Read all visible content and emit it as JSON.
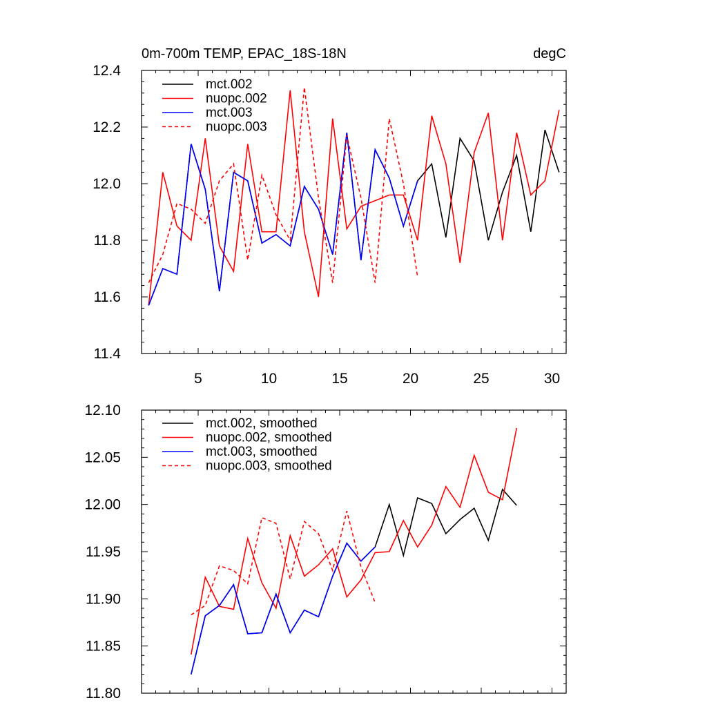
{
  "chart_data": [
    {
      "type": "line",
      "title_left": "0m-700m TEMP, EPAC_18S-18N",
      "title_right": "degC",
      "xlabel": "",
      "ylabel": "",
      "xlim": [
        1,
        31
      ],
      "ylim": [
        11.4,
        12.4
      ],
      "xticks": [
        5,
        10,
        15,
        20,
        25,
        30
      ],
      "xtick_labels": [
        "5",
        "10",
        "15",
        "20",
        "25",
        "30"
      ],
      "yticks": [
        11.4,
        11.6,
        11.8,
        12.0,
        12.2,
        12.4
      ],
      "ytick_labels": [
        "11.4",
        "11.6",
        "11.8",
        "12.0",
        "12.2",
        "12.4"
      ],
      "legend_position": "top-left",
      "series": [
        {
          "name": "mct.002",
          "color": "#000000",
          "dash": "solid",
          "x": [
            1.5,
            2.5,
            3.5,
            4.5,
            5.5,
            6.5,
            7.5,
            8.5,
            9.5,
            10.5,
            11.5,
            12.5,
            13.5,
            14.5,
            15.5,
            16.5,
            17.5,
            18.5,
            19.5,
            20.5,
            21.5,
            22.5,
            23.5,
            24.5,
            25.5,
            26.5,
            27.5,
            28.5,
            29.5,
            30.5
          ],
          "values": [
            11.57,
            11.7,
            11.68,
            12.14,
            11.98,
            11.62,
            12.04,
            12.01,
            11.79,
            11.82,
            11.78,
            11.99,
            11.91,
            11.75,
            12.18,
            11.73,
            12.12,
            12.02,
            11.85,
            12.01,
            12.07,
            11.81,
            12.16,
            12.08,
            11.8,
            11.97,
            12.1,
            11.83,
            12.19,
            12.04
          ]
        },
        {
          "name": "nuopc.002",
          "color": "#ff0000",
          "dash": "solid",
          "x": [
            1.5,
            2.5,
            3.5,
            4.5,
            5.5,
            6.5,
            7.5,
            8.5,
            9.5,
            10.5,
            11.5,
            12.5,
            13.5,
            14.5,
            15.5,
            16.5,
            17.5,
            18.5,
            19.5,
            20.5,
            21.5,
            22.5,
            23.5,
            24.5,
            25.5,
            26.5,
            27.5,
            28.5,
            29.5,
            30.5
          ],
          "values": [
            11.57,
            12.04,
            11.85,
            11.8,
            12.16,
            11.78,
            11.69,
            12.14,
            11.83,
            11.83,
            12.33,
            11.83,
            11.6,
            12.23,
            11.84,
            11.92,
            11.94,
            11.96,
            11.96,
            11.8,
            12.24,
            12.07,
            11.72,
            12.11,
            12.25,
            11.8,
            12.18,
            11.96,
            12.01,
            12.26
          ]
        },
        {
          "name": "mct.003",
          "color": "#0000ff",
          "dash": "solid",
          "x": [
            1.5,
            2.5,
            3.5,
            4.5,
            5.5,
            6.5,
            7.5,
            8.5,
            9.5,
            10.5,
            11.5,
            12.5,
            13.5,
            14.5,
            15.5,
            16.5,
            17.5,
            18.5,
            19.5,
            20.5
          ],
          "values": [
            11.57,
            11.7,
            11.68,
            12.14,
            11.98,
            11.62,
            12.04,
            12.01,
            11.79,
            11.82,
            11.78,
            11.99,
            11.91,
            11.75,
            12.18,
            11.73,
            12.12,
            12.02,
            11.85,
            12.01
          ]
        },
        {
          "name": "nuopc.003",
          "color": "#ff0000",
          "dash": "dashed",
          "x": [
            1.5,
            2.5,
            3.5,
            4.5,
            5.5,
            6.5,
            7.5,
            8.5,
            9.5,
            10.5,
            11.5,
            12.5,
            13.5,
            14.5,
            15.5,
            16.5,
            17.5,
            18.5,
            19.5,
            20.5
          ],
          "values": [
            11.65,
            11.75,
            11.93,
            11.91,
            11.86,
            12.01,
            12.07,
            11.73,
            12.03,
            11.89,
            11.8,
            12.34,
            11.95,
            11.65,
            12.17,
            11.95,
            11.65,
            12.23,
            12.0,
            11.67
          ]
        }
      ]
    },
    {
      "type": "line",
      "title_left": "",
      "title_right": "",
      "xlabel": "",
      "ylabel": "",
      "xlim": [
        1,
        31
      ],
      "ylim": [
        11.8,
        12.1
      ],
      "xticks": [
        5,
        10,
        15,
        20,
        25,
        30
      ],
      "xtick_labels": [],
      "yticks": [
        11.8,
        11.85,
        11.9,
        11.95,
        12.0,
        12.05,
        12.1
      ],
      "ytick_labels": [
        "11.80",
        "11.85",
        "11.90",
        "11.95",
        "12.00",
        "12.05",
        "12.10"
      ],
      "legend_position": "top-left",
      "series": [
        {
          "name": "mct.002, smoothed",
          "color": "#000000",
          "dash": "solid",
          "x": [
            4.5,
            5.5,
            6.5,
            7.5,
            8.5,
            9.5,
            10.5,
            11.5,
            12.5,
            13.5,
            14.5,
            15.5,
            16.5,
            17.5,
            18.5,
            19.5,
            20.5,
            21.5,
            22.5,
            23.5,
            24.5,
            25.5,
            26.5,
            27.5
          ],
          "values": [
            11.82,
            11.882,
            11.893,
            11.915,
            11.863,
            11.864,
            11.905,
            11.864,
            11.888,
            11.881,
            11.924,
            11.959,
            11.94,
            11.955,
            12.0,
            11.946,
            12.007,
            12.001,
            11.969,
            11.984,
            11.996,
            11.962,
            12.016,
            11.999
          ]
        },
        {
          "name": "nuopc.002, smoothed",
          "color": "#ff0000",
          "dash": "solid",
          "x": [
            4.5,
            5.5,
            6.5,
            7.5,
            8.5,
            9.5,
            10.5,
            11.5,
            12.5,
            13.5,
            14.5,
            15.5,
            16.5,
            17.5,
            18.5,
            19.5,
            20.5,
            21.5,
            22.5,
            23.5,
            24.5,
            25.5,
            26.5,
            27.5
          ],
          "values": [
            11.841,
            11.923,
            11.892,
            11.889,
            11.964,
            11.917,
            11.89,
            11.967,
            11.924,
            11.936,
            11.953,
            11.902,
            11.92,
            11.949,
            11.95,
            11.983,
            11.955,
            11.978,
            12.019,
            11.997,
            12.052,
            12.013,
            12.005,
            12.081
          ]
        },
        {
          "name": "mct.003, smoothed",
          "color": "#0000ff",
          "dash": "solid",
          "x": [
            4.5,
            5.5,
            6.5,
            7.5,
            8.5,
            9.5,
            10.5,
            11.5,
            12.5,
            13.5,
            14.5,
            15.5,
            16.5,
            17.5
          ],
          "values": [
            11.82,
            11.882,
            11.893,
            11.915,
            11.863,
            11.864,
            11.905,
            11.864,
            11.888,
            11.881,
            11.924,
            11.959,
            11.94,
            11.955
          ]
        },
        {
          "name": "nuopc.003, smoothed",
          "color": "#ff0000",
          "dash": "dashed",
          "x": [
            4.5,
            5.5,
            6.5,
            7.5,
            8.5,
            9.5,
            10.5,
            11.5,
            12.5,
            13.5,
            14.5,
            15.5,
            16.5,
            17.5
          ],
          "values": [
            11.883,
            11.893,
            11.935,
            11.93,
            11.916,
            11.986,
            11.98,
            11.921,
            11.982,
            11.969,
            11.93,
            11.993,
            11.934,
            11.896
          ]
        }
      ]
    }
  ]
}
